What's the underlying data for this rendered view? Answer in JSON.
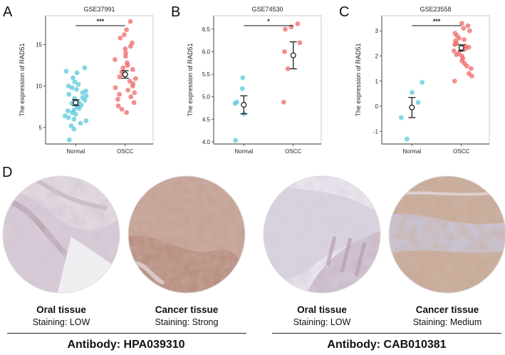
{
  "chart_data": [
    {
      "letter": "A",
      "type": "scatter",
      "title": "GSE37991",
      "ylabel": "The expression of RAD51",
      "categories": [
        "Normal",
        "OSCC"
      ],
      "ylim": [
        3,
        18.5
      ],
      "yticks": [
        "5",
        "10",
        "15"
      ],
      "significance": "***",
      "series": [
        {
          "name": "Normal",
          "color": "#5bc8dc",
          "mean": 8.0,
          "err": 0.35,
          "values": [
            12.2,
            11.8,
            11.6,
            11.0,
            10.5,
            10.2,
            10.0,
            9.8,
            9.6,
            9.4,
            9.2,
            9.0,
            8.8,
            8.6,
            8.5,
            8.3,
            8.1,
            8.0,
            7.9,
            7.7,
            7.5,
            7.3,
            7.1,
            7.0,
            6.8,
            6.6,
            6.4,
            6.2,
            6.0,
            5.8,
            5.5,
            5.2,
            4.8,
            3.5
          ]
        },
        {
          "name": "OSCC",
          "color": "#ee6a66",
          "mean": 11.4,
          "err": 0.45,
          "values": [
            17.8,
            16.8,
            16.2,
            15.8,
            15.2,
            14.8,
            14.5,
            14.0,
            13.6,
            13.2,
            12.8,
            12.5,
            12.2,
            12.0,
            11.7,
            11.4,
            11.1,
            10.9,
            10.6,
            10.3,
            10.0,
            9.8,
            9.5,
            9.2,
            9.0,
            8.7,
            8.4,
            8.0,
            7.6,
            7.2,
            6.8
          ]
        }
      ]
    },
    {
      "letter": "B",
      "type": "scatter",
      "title": "GSE74530",
      "ylabel": "The expression of RAD51",
      "categories": [
        "Normal",
        "OSCC"
      ],
      "ylim": [
        3.95,
        6.8
      ],
      "yticks": [
        "4.0",
        "4.5",
        "5.0",
        "5.5",
        "6.0",
        "6.5"
      ],
      "significance": "*",
      "series": [
        {
          "name": "Normal",
          "color": "#5bc8dc",
          "mean": 4.82,
          "err": 0.2,
          "values": [
            5.42,
            5.18,
            4.88,
            4.85,
            4.62,
            4.03
          ]
        },
        {
          "name": "OSCC",
          "color": "#ee6a66",
          "mean": 5.92,
          "err": 0.3,
          "values": [
            6.62,
            6.55,
            6.5,
            6.2,
            6.0,
            5.62,
            4.88
          ]
        }
      ]
    },
    {
      "letter": "C",
      "type": "scatter",
      "title": "GSE23558",
      "ylabel": "The expression of RAD51",
      "categories": [
        "Normal",
        "OSCC"
      ],
      "ylim": [
        -1.5,
        3.6
      ],
      "yticks": [
        "-1",
        "0",
        "1",
        "2",
        "3"
      ],
      "significance": "***",
      "series": [
        {
          "name": "Normal",
          "color": "#5bc8dc",
          "mean": -0.05,
          "err": 0.4,
          "values": [
            0.95,
            0.55,
            0.15,
            -0.45,
            -1.3
          ]
        },
        {
          "name": "OSCC",
          "color": "#ee6a66",
          "mean": 2.32,
          "err": 0.12,
          "values": [
            3.3,
            3.2,
            3.1,
            3.0,
            2.9,
            2.8,
            2.7,
            2.65,
            2.6,
            2.5,
            2.45,
            2.4,
            2.35,
            2.3,
            2.25,
            2.2,
            2.1,
            2.05,
            2.0,
            1.9,
            1.8,
            1.7,
            1.6,
            1.5,
            1.3,
            1.2,
            1.0
          ]
        }
      ]
    }
  ],
  "panel_d": {
    "letter": "D",
    "images": [
      {
        "tissue": "Oral tissue",
        "staining": "Staining:  LOW"
      },
      {
        "tissue": "Cancer tissue",
        "staining": "Staining:  Strong"
      },
      {
        "tissue": "Oral tissue",
        "staining": "Staining:  LOW"
      },
      {
        "tissue": "Cancer tissue",
        "staining": "Staining:  Medium"
      }
    ],
    "antibodies": [
      "Antibody:  HPA039310",
      "Antibody:  CAB010381"
    ]
  }
}
